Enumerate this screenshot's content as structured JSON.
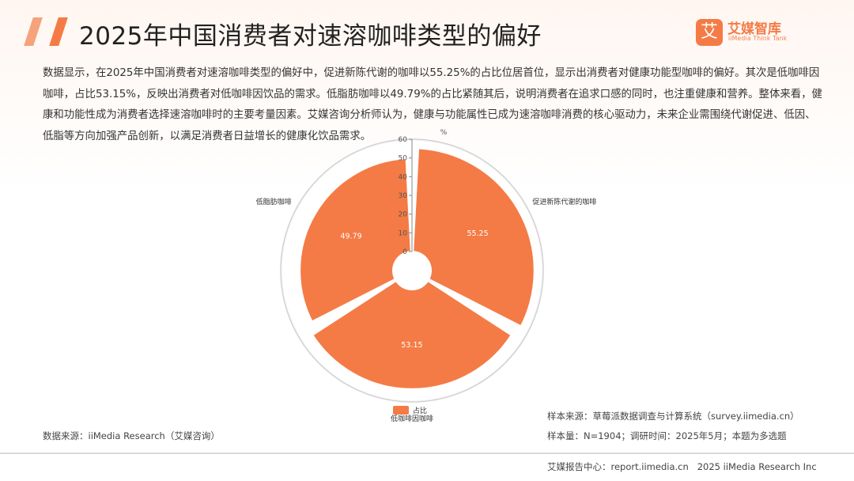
{
  "page": {
    "title": "2025年中国消费者对速溶咖啡类型的偏好",
    "description": "数据显示，在2025年中国消费者对速溶咖啡类型的偏好中，促进新陈代谢的咖啡以55.25%的占比位居首位，显示出消费者对健康功能型咖啡的偏好。其次是低咖啡因咖啡，占比53.15%，反映出消费者对低咖啡因饮品的需求。低脂肪咖啡以49.79%的占比紧随其后，说明消费者在追求口感的同时，也注重健康和营养。整体来看，健康和功能性成为消费者选择速溶咖啡时的主要考量因素。艾媒咨询分析师认为，健康与功能属性已成为速溶咖啡消费的核心驱动力，未来企业需围绕代谢促进、低因、低脂等方向加强产品创新，以满足消费者日益增长的健康化饮品需求。"
  },
  "logo": {
    "mark": "艾",
    "name": "艾媒智库",
    "sub": "iiMedia Think Tank"
  },
  "chart_data": {
    "type": "pie",
    "variant": "rose",
    "categories": [
      "促进新陈代谢的咖啡",
      "低咖啡因咖啡",
      "低脂肪咖啡"
    ],
    "values": [
      55.25,
      53.15,
      49.79
    ],
    "value_labels": [
      "55.25",
      "53.15",
      "49.79"
    ],
    "radial_axis_unit": "%",
    "radial_range": [
      0,
      60
    ],
    "radial_ticks": [
      0,
      10,
      20,
      30,
      40,
      50,
      60
    ],
    "legend": {
      "label": "占比",
      "position": "bottom"
    },
    "color": "#f47b45"
  },
  "sources": {
    "data_source": "数据来源：iiMedia Research（艾媒咨询）",
    "sample_source": "样本来源：草莓派数据调查与计算系统（survey.iimedia.cn）",
    "sample_info": "样本量：N=1904；调研时间：2025年5月；本题为多选题"
  },
  "footer": {
    "center": "艾媒报告中心：report.iimedia.cn",
    "copyright": "2025 iiMedia Research Inc"
  }
}
